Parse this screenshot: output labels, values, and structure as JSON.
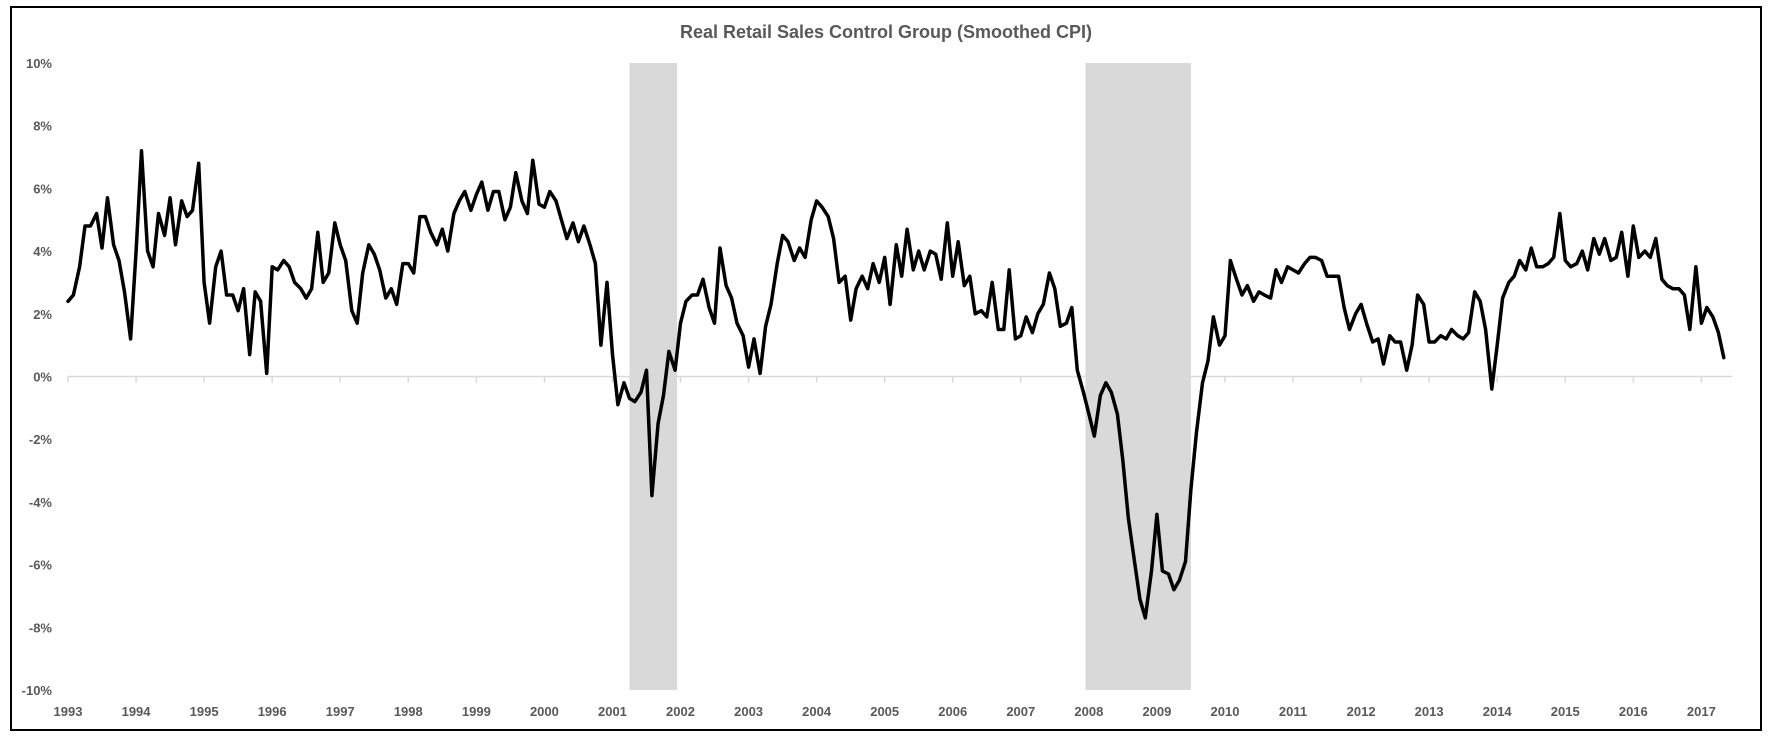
{
  "chart_data": {
    "type": "line",
    "title": "Real Retail Sales Control Group (Smoothed CPI)",
    "xlabel": "",
    "ylabel": "",
    "ylim": [
      -10,
      10
    ],
    "yticks": [
      "10%",
      "8%",
      "6%",
      "4%",
      "2%",
      "0%",
      "-2%",
      "-4%",
      "-6%",
      "-8%",
      "-10%"
    ],
    "ytick_values": [
      10,
      8,
      6,
      4,
      2,
      0,
      -2,
      -4,
      -6,
      -8,
      -10
    ],
    "xlim": [
      1993,
      2017.45
    ],
    "xticks": [
      "1993",
      "1994",
      "1995",
      "1996",
      "1997",
      "1998",
      "1999",
      "2000",
      "2001",
      "2002",
      "2003",
      "2004",
      "2005",
      "2006",
      "2007",
      "2008",
      "2009",
      "2010",
      "2011",
      "2012",
      "2013",
      "2014",
      "2015",
      "2016",
      "2017"
    ],
    "grid": false,
    "recession_bands": [
      {
        "start": 2001.25,
        "end": 2001.95
      },
      {
        "start": 2007.95,
        "end": 2009.5
      }
    ],
    "colors": {
      "line": "#000000",
      "band": "#d9d9d9",
      "zero_line": "#d9d9d9",
      "text": "#595959"
    },
    "series": [
      {
        "values": [
          [
            1993.0,
            2.4
          ],
          [
            1993.08,
            2.6
          ],
          [
            1993.17,
            3.5
          ],
          [
            1993.25,
            4.8
          ],
          [
            1993.33,
            4.8
          ],
          [
            1993.42,
            5.2
          ],
          [
            1993.5,
            4.1
          ],
          [
            1993.58,
            5.7
          ],
          [
            1993.67,
            4.2
          ],
          [
            1993.75,
            3.7
          ],
          [
            1993.83,
            2.7
          ],
          [
            1993.92,
            1.2
          ],
          [
            1994.0,
            4.0
          ],
          [
            1994.08,
            7.2
          ],
          [
            1994.17,
            4.0
          ],
          [
            1994.25,
            3.5
          ],
          [
            1994.33,
            5.2
          ],
          [
            1994.42,
            4.5
          ],
          [
            1994.5,
            5.7
          ],
          [
            1994.58,
            4.2
          ],
          [
            1994.67,
            5.6
          ],
          [
            1994.75,
            5.1
          ],
          [
            1994.83,
            5.3
          ],
          [
            1994.92,
            6.8
          ],
          [
            1995.0,
            3.0
          ],
          [
            1995.08,
            1.7
          ],
          [
            1995.17,
            3.5
          ],
          [
            1995.25,
            4.0
          ],
          [
            1995.33,
            2.6
          ],
          [
            1995.42,
            2.6
          ],
          [
            1995.5,
            2.1
          ],
          [
            1995.58,
            2.8
          ],
          [
            1995.67,
            0.7
          ],
          [
            1995.75,
            2.7
          ],
          [
            1995.83,
            2.4
          ],
          [
            1995.92,
            0.1
          ],
          [
            1996.0,
            3.5
          ],
          [
            1996.08,
            3.4
          ],
          [
            1996.17,
            3.7
          ],
          [
            1996.25,
            3.5
          ],
          [
            1996.33,
            3.0
          ],
          [
            1996.42,
            2.8
          ],
          [
            1996.5,
            2.5
          ],
          [
            1996.58,
            2.8
          ],
          [
            1996.67,
            4.6
          ],
          [
            1996.75,
            3.0
          ],
          [
            1996.83,
            3.3
          ],
          [
            1996.92,
            4.9
          ],
          [
            1997.0,
            4.2
          ],
          [
            1997.08,
            3.7
          ],
          [
            1997.17,
            2.1
          ],
          [
            1997.25,
            1.7
          ],
          [
            1997.33,
            3.3
          ],
          [
            1997.42,
            4.2
          ],
          [
            1997.5,
            3.9
          ],
          [
            1997.58,
            3.4
          ],
          [
            1997.67,
            2.5
          ],
          [
            1997.75,
            2.8
          ],
          [
            1997.83,
            2.3
          ],
          [
            1997.92,
            3.6
          ],
          [
            1998.0,
            3.6
          ],
          [
            1998.08,
            3.3
          ],
          [
            1998.17,
            5.1
          ],
          [
            1998.25,
            5.1
          ],
          [
            1998.33,
            4.6
          ],
          [
            1998.42,
            4.2
          ],
          [
            1998.5,
            4.7
          ],
          [
            1998.58,
            4.0
          ],
          [
            1998.67,
            5.2
          ],
          [
            1998.75,
            5.6
          ],
          [
            1998.83,
            5.9
          ],
          [
            1998.92,
            5.3
          ],
          [
            1999.0,
            5.8
          ],
          [
            1999.08,
            6.2
          ],
          [
            1999.17,
            5.3
          ],
          [
            1999.25,
            5.9
          ],
          [
            1999.33,
            5.9
          ],
          [
            1999.42,
            5.0
          ],
          [
            1999.5,
            5.4
          ],
          [
            1999.58,
            6.5
          ],
          [
            1999.67,
            5.6
          ],
          [
            1999.75,
            5.2
          ],
          [
            1999.83,
            6.9
          ],
          [
            1999.92,
            5.5
          ],
          [
            2000.0,
            5.4
          ],
          [
            2000.08,
            5.9
          ],
          [
            2000.17,
            5.6
          ],
          [
            2000.25,
            5.0
          ],
          [
            2000.33,
            4.4
          ],
          [
            2000.42,
            4.9
          ],
          [
            2000.5,
            4.3
          ],
          [
            2000.58,
            4.8
          ],
          [
            2000.67,
            4.2
          ],
          [
            2000.75,
            3.6
          ],
          [
            2000.83,
            1.0
          ],
          [
            2000.92,
            3.0
          ],
          [
            2001.0,
            0.7
          ],
          [
            2001.08,
            -0.9
          ],
          [
            2001.17,
            -0.2
          ],
          [
            2001.25,
            -0.7
          ],
          [
            2001.33,
            -0.8
          ],
          [
            2001.42,
            -0.5
          ],
          [
            2001.5,
            0.2
          ],
          [
            2001.58,
            -3.8
          ],
          [
            2001.67,
            -1.5
          ],
          [
            2001.75,
            -0.6
          ],
          [
            2001.83,
            0.8
          ],
          [
            2001.92,
            0.2
          ],
          [
            2002.0,
            1.7
          ],
          [
            2002.08,
            2.4
          ],
          [
            2002.17,
            2.6
          ],
          [
            2002.25,
            2.6
          ],
          [
            2002.33,
            3.1
          ],
          [
            2002.42,
            2.2
          ],
          [
            2002.5,
            1.7
          ],
          [
            2002.58,
            4.1
          ],
          [
            2002.67,
            2.9
          ],
          [
            2002.75,
            2.5
          ],
          [
            2002.83,
            1.7
          ],
          [
            2002.92,
            1.3
          ],
          [
            2003.0,
            0.3
          ],
          [
            2003.08,
            1.2
          ],
          [
            2003.17,
            0.1
          ],
          [
            2003.25,
            1.6
          ],
          [
            2003.33,
            2.3
          ],
          [
            2003.42,
            3.6
          ],
          [
            2003.5,
            4.5
          ],
          [
            2003.58,
            4.3
          ],
          [
            2003.67,
            3.7
          ],
          [
            2003.75,
            4.1
          ],
          [
            2003.83,
            3.8
          ],
          [
            2003.92,
            5.0
          ],
          [
            2004.0,
            5.6
          ],
          [
            2004.08,
            5.4
          ],
          [
            2004.17,
            5.1
          ],
          [
            2004.25,
            4.4
          ],
          [
            2004.33,
            3.0
          ],
          [
            2004.42,
            3.2
          ],
          [
            2004.5,
            1.8
          ],
          [
            2004.58,
            2.8
          ],
          [
            2004.67,
            3.2
          ],
          [
            2004.75,
            2.8
          ],
          [
            2004.83,
            3.6
          ],
          [
            2004.92,
            3.0
          ],
          [
            2005.0,
            3.8
          ],
          [
            2005.08,
            2.3
          ],
          [
            2005.17,
            4.2
          ],
          [
            2005.25,
            3.2
          ],
          [
            2005.33,
            4.7
          ],
          [
            2005.42,
            3.4
          ],
          [
            2005.5,
            4.0
          ],
          [
            2005.58,
            3.4
          ],
          [
            2005.67,
            4.0
          ],
          [
            2005.75,
            3.9
          ],
          [
            2005.83,
            3.1
          ],
          [
            2005.92,
            4.9
          ],
          [
            2006.0,
            3.2
          ],
          [
            2006.08,
            4.3
          ],
          [
            2006.17,
            2.9
          ],
          [
            2006.25,
            3.2
          ],
          [
            2006.33,
            2.0
          ],
          [
            2006.42,
            2.1
          ],
          [
            2006.5,
            1.9
          ],
          [
            2006.58,
            3.0
          ],
          [
            2006.67,
            1.5
          ],
          [
            2006.75,
            1.5
          ],
          [
            2006.83,
            3.4
          ],
          [
            2006.92,
            1.2
          ],
          [
            2007.0,
            1.3
          ],
          [
            2007.08,
            1.9
          ],
          [
            2007.17,
            1.4
          ],
          [
            2007.25,
            2.0
          ],
          [
            2007.33,
            2.3
          ],
          [
            2007.42,
            3.3
          ],
          [
            2007.5,
            2.8
          ],
          [
            2007.58,
            1.6
          ],
          [
            2007.67,
            1.7
          ],
          [
            2007.75,
            2.2
          ],
          [
            2007.83,
            0.2
          ],
          [
            2007.92,
            -0.5
          ],
          [
            2008.0,
            -1.2
          ],
          [
            2008.08,
            -1.9
          ],
          [
            2008.17,
            -0.6
          ],
          [
            2008.25,
            -0.2
          ],
          [
            2008.33,
            -0.5
          ],
          [
            2008.42,
            -1.2
          ],
          [
            2008.5,
            -2.7
          ],
          [
            2008.58,
            -4.5
          ],
          [
            2008.67,
            -5.9
          ],
          [
            2008.75,
            -7.1
          ],
          [
            2008.83,
            -7.7
          ],
          [
            2008.92,
            -6.2
          ],
          [
            2009.0,
            -4.4
          ],
          [
            2009.08,
            -6.2
          ],
          [
            2009.17,
            -6.3
          ],
          [
            2009.25,
            -6.8
          ],
          [
            2009.33,
            -6.5
          ],
          [
            2009.42,
            -5.9
          ],
          [
            2009.5,
            -3.6
          ],
          [
            2009.58,
            -1.8
          ],
          [
            2009.67,
            -0.2
          ],
          [
            2009.75,
            0.5
          ],
          [
            2009.83,
            1.9
          ],
          [
            2009.92,
            1.0
          ],
          [
            2010.0,
            1.3
          ],
          [
            2010.08,
            3.7
          ],
          [
            2010.17,
            3.1
          ],
          [
            2010.25,
            2.6
          ],
          [
            2010.33,
            2.9
          ],
          [
            2010.42,
            2.4
          ],
          [
            2010.5,
            2.7
          ],
          [
            2010.58,
            2.6
          ],
          [
            2010.67,
            2.5
          ],
          [
            2010.75,
            3.4
          ],
          [
            2010.83,
            3.0
          ],
          [
            2010.92,
            3.5
          ],
          [
            2011.0,
            3.4
          ],
          [
            2011.08,
            3.3
          ],
          [
            2011.17,
            3.6
          ],
          [
            2011.25,
            3.8
          ],
          [
            2011.33,
            3.8
          ],
          [
            2011.42,
            3.7
          ],
          [
            2011.5,
            3.2
          ],
          [
            2011.58,
            3.2
          ],
          [
            2011.67,
            3.2
          ],
          [
            2011.75,
            2.2
          ],
          [
            2011.83,
            1.5
          ],
          [
            2011.92,
            2.0
          ],
          [
            2012.0,
            2.3
          ],
          [
            2012.08,
            1.7
          ],
          [
            2012.17,
            1.1
          ],
          [
            2012.25,
            1.2
          ],
          [
            2012.33,
            0.4
          ],
          [
            2012.42,
            1.3
          ],
          [
            2012.5,
            1.1
          ],
          [
            2012.58,
            1.1
          ],
          [
            2012.67,
            0.2
          ],
          [
            2012.75,
            1.0
          ],
          [
            2012.83,
            2.6
          ],
          [
            2012.92,
            2.3
          ],
          [
            2013.0,
            1.1
          ],
          [
            2013.08,
            1.1
          ],
          [
            2013.17,
            1.3
          ],
          [
            2013.25,
            1.2
          ],
          [
            2013.33,
            1.5
          ],
          [
            2013.42,
            1.3
          ],
          [
            2013.5,
            1.2
          ],
          [
            2013.58,
            1.4
          ],
          [
            2013.67,
            2.7
          ],
          [
            2013.75,
            2.4
          ],
          [
            2013.83,
            1.5
          ],
          [
            2013.92,
            -0.4
          ],
          [
            2014.0,
            1.0
          ],
          [
            2014.08,
            2.5
          ],
          [
            2014.17,
            3.0
          ],
          [
            2014.25,
            3.2
          ],
          [
            2014.33,
            3.7
          ],
          [
            2014.42,
            3.4
          ],
          [
            2014.5,
            4.1
          ],
          [
            2014.58,
            3.5
          ],
          [
            2014.67,
            3.5
          ],
          [
            2014.75,
            3.6
          ],
          [
            2014.83,
            3.8
          ],
          [
            2014.92,
            5.2
          ],
          [
            2015.0,
            3.7
          ],
          [
            2015.08,
            3.5
          ],
          [
            2015.17,
            3.6
          ],
          [
            2015.25,
            4.0
          ],
          [
            2015.33,
            3.4
          ],
          [
            2015.42,
            4.4
          ],
          [
            2015.5,
            3.9
          ],
          [
            2015.58,
            4.4
          ],
          [
            2015.67,
            3.7
          ],
          [
            2015.75,
            3.8
          ],
          [
            2015.83,
            4.6
          ],
          [
            2015.92,
            3.2
          ],
          [
            2016.0,
            4.8
          ],
          [
            2016.08,
            3.8
          ],
          [
            2016.17,
            4.0
          ],
          [
            2016.25,
            3.8
          ],
          [
            2016.33,
            4.4
          ],
          [
            2016.42,
            3.1
          ],
          [
            2016.5,
            2.9
          ],
          [
            2016.58,
            2.8
          ],
          [
            2016.67,
            2.8
          ],
          [
            2016.75,
            2.6
          ],
          [
            2016.83,
            1.5
          ],
          [
            2016.92,
            3.5
          ],
          [
            2017.0,
            1.7
          ],
          [
            2017.08,
            2.2
          ],
          [
            2017.17,
            1.9
          ],
          [
            2017.25,
            1.4
          ],
          [
            2017.33,
            0.6
          ]
        ]
      }
    ]
  }
}
